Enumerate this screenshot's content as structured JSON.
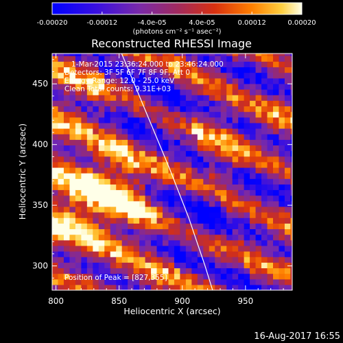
{
  "chart_data": {
    "type": "heatmap",
    "title": "Reconstructed RHESSI Image",
    "xlabel": "Heliocentric X (arcsec)",
    "ylabel": "Heliocentric Y (arcsec)",
    "xlim": [
      797,
      987
    ],
    "ylim": [
      280,
      475
    ],
    "xticks": [
      800,
      850,
      900,
      950
    ],
    "yticks": [
      300,
      350,
      400,
      450
    ],
    "peak": [
      827,
      355
    ],
    "colorbar": {
      "range": [
        -0.0002,
        0.0002
      ],
      "ticks": [
        "-0.00020",
        "-0.00012",
        "-4.0e-05",
        "4.0e-05",
        "0.00012",
        "0.00020"
      ],
      "unit": "(photons cm⁻² s⁻¹ asec⁻²)"
    },
    "limb": [
      [
        852,
        475
      ],
      [
        870,
        430
      ],
      [
        890,
        380
      ],
      [
        905,
        340
      ],
      [
        918,
        300
      ],
      [
        924,
        280
      ]
    ],
    "annotations": {
      "time": "1-Mar-2015 23:36:24.000 to 23:46:24.000",
      "detectors": "Detectors: 3F 5F 6F 7F 8F 9F, Att 0",
      "energy": "Energy Range: 12.0 - 25.0 keV",
      "clean": "Clean     Total counts: 9.31E+03",
      "peak_label": "Position of Peak = [827,355]"
    },
    "timestamp": "16-Aug-2017 16:55"
  }
}
